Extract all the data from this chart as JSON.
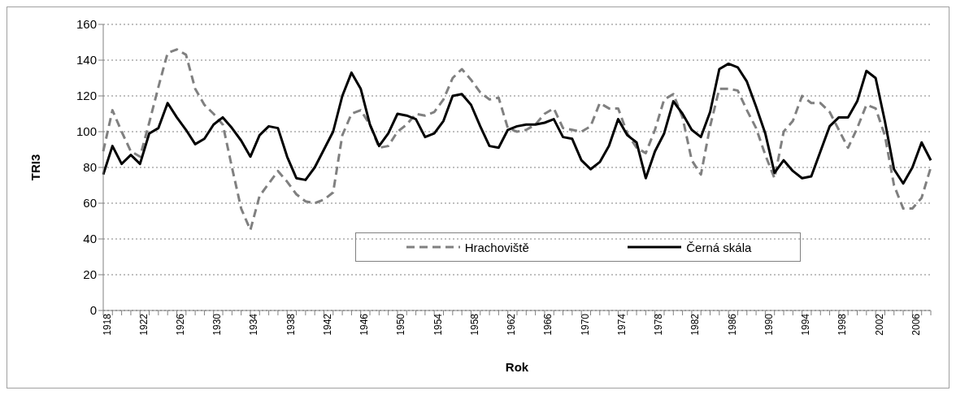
{
  "chart_data": {
    "type": "line",
    "xlabel": "Rok",
    "ylabel": "TRI3",
    "categories": [
      "1918",
      null,
      null,
      null,
      "1922",
      null,
      null,
      null,
      "1926",
      null,
      null,
      null,
      "1930",
      null,
      null,
      null,
      "1934",
      null,
      null,
      null,
      "1938",
      null,
      null,
      null,
      "1942",
      null,
      null,
      null,
      "1946",
      null,
      null,
      null,
      "1950",
      null,
      null,
      null,
      "1954",
      null,
      null,
      null,
      "1958",
      null,
      null,
      null,
      "1962",
      null,
      null,
      null,
      "1966",
      null,
      null,
      null,
      "1970",
      null,
      null,
      null,
      "1974",
      null,
      null,
      null,
      "1978",
      null,
      null,
      null,
      "1982",
      null,
      null,
      null,
      "1986",
      null,
      null,
      null,
      "1990",
      null,
      null,
      null,
      "1994",
      null,
      null,
      null,
      "1998",
      null,
      null,
      null,
      "2002",
      null,
      null,
      null,
      "2006",
      null,
      null
    ],
    "series": [
      {
        "name": "Hrachoviště",
        "color": "#808080",
        "line_style": "dashed",
        "values": [
          89,
          112,
          100,
          89,
          86,
          105,
          125,
          144,
          146,
          143,
          124,
          115,
          110,
          104,
          80,
          57,
          45,
          64,
          71,
          78,
          72,
          65,
          61,
          60,
          62,
          66,
          98,
          110,
          112,
          104,
          91,
          92,
          100,
          104,
          110,
          109,
          111,
          118,
          130,
          135,
          129,
          122,
          118,
          119,
          102,
          100,
          101,
          104,
          110,
          113,
          102,
          101,
          100,
          103,
          116,
          113,
          113,
          99,
          91,
          88,
          101,
          118,
          121,
          108,
          84,
          76,
          103,
          124,
          124,
          123,
          112,
          102,
          87,
          74,
          100,
          106,
          120,
          116,
          116,
          111,
          101,
          91,
          102,
          115,
          113,
          98,
          70,
          57,
          57,
          63,
          80
        ]
      },
      {
        "name": "Černá skála",
        "color": "#000000",
        "line_style": "solid",
        "values": [
          76,
          92,
          82,
          87,
          82,
          99,
          102,
          116,
          108,
          101,
          93,
          96,
          104,
          108,
          102,
          95,
          86,
          98,
          103,
          102,
          86,
          74,
          73,
          80,
          90,
          100,
          120,
          133,
          124,
          104,
          92,
          99,
          110,
          109,
          107,
          97,
          99,
          106,
          120,
          121,
          115,
          103,
          92,
          91,
          101,
          103,
          104,
          104,
          105,
          107,
          97,
          96,
          84,
          79,
          83,
          92,
          107,
          98,
          94,
          74,
          89,
          99,
          117,
          110,
          101,
          97,
          111,
          135,
          138,
          136,
          128,
          114,
          99,
          77,
          84,
          78,
          74,
          75,
          89,
          103,
          108,
          108,
          117,
          134,
          130,
          106,
          79,
          71,
          80,
          94,
          84
        ]
      }
    ],
    "ylim": [
      0,
      160
    ],
    "yticks": [
      0,
      20,
      40,
      60,
      80,
      100,
      120,
      140,
      160
    ],
    "grid": "y",
    "legend": "bottom",
    "marker": "none"
  }
}
